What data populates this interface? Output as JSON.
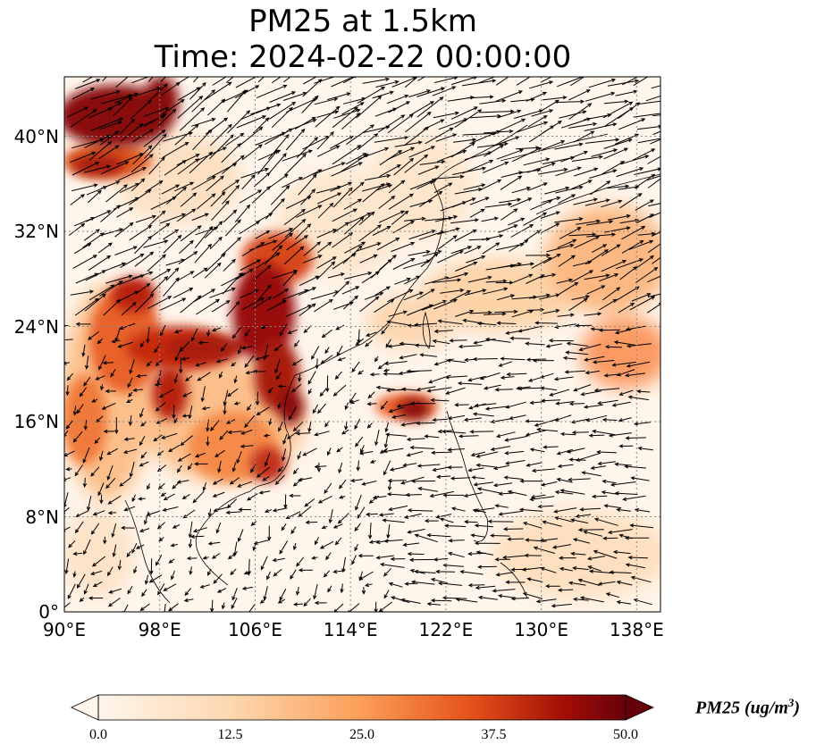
{
  "title": {
    "line1": "PM25 at 1.5km",
    "line2": "Time: 2024-02-22 00:00:00"
  },
  "map": {
    "lon_range": [
      90,
      140
    ],
    "lat_range": [
      0,
      45
    ],
    "lon_ticks": [
      "90°E",
      "98°E",
      "106°E",
      "114°E",
      "122°E",
      "130°E",
      "138°E"
    ],
    "lat_ticks": [
      "0°",
      "8°N",
      "16°N",
      "24°N",
      "32°N",
      "40°N"
    ],
    "lon_tick_values": [
      90,
      98,
      106,
      114,
      122,
      130,
      138
    ],
    "lat_tick_values": [
      0,
      8,
      16,
      24,
      32,
      40
    ],
    "gridlines": "dotted",
    "variable": "PM25",
    "wind_vectors": true
  },
  "colorbar": {
    "label": "PM25 (ug/m",
    "label_sup": "3",
    "label_close": ")",
    "ticks": [
      "0.0",
      "12.5",
      "25.0",
      "37.5",
      "50.0"
    ],
    "range": [
      0,
      50
    ],
    "cmap_colors": [
      "#fff5eb",
      "#fdd8b0",
      "#fd9e58",
      "#e5541b",
      "#a50f05",
      "#67000d"
    ],
    "extend": "both"
  }
}
